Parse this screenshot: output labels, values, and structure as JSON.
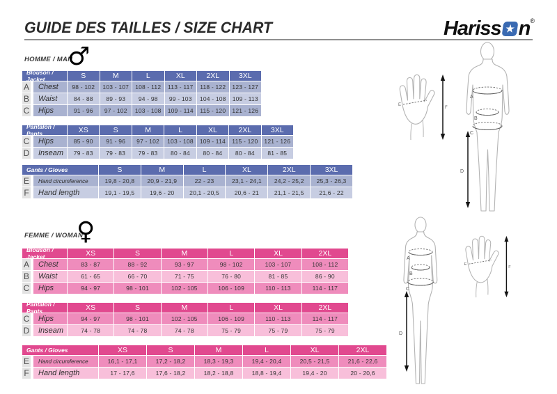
{
  "header": {
    "title": "GUIDE DES TAILLES / SIZE CHART",
    "brand": {
      "part1": "Hariss",
      "part2": "n",
      "star": "★",
      "registered": "®",
      "star_color": "#3a6ab2"
    }
  },
  "sections": {
    "man": {
      "label": "HOMME / MAN",
      "symbol": "♂"
    },
    "woman": {
      "label": "FEMME / WOMAN",
      "symbol": "♀"
    }
  },
  "colors": {
    "man_header": "#5b6cae",
    "man_row_dark": "#a9b2d0",
    "man_row_light": "#c7cde2",
    "woman_header": "#e1498f",
    "woman_row_dark": "#ef8cbc",
    "woman_row_light": "#f8bfda",
    "letter_bg": "#e3e3e3"
  },
  "tables": [
    {
      "key": "man-jacket",
      "section": "man",
      "title": "Blouson / Jacket",
      "sizes": [
        "S",
        "M",
        "L",
        "XL",
        "2XL",
        "3XL"
      ],
      "rows": [
        {
          "letter": "A",
          "label": "Chest",
          "values": [
            "98 - 102",
            "103 - 107",
            "108 - 112",
            "113 - 117",
            "118 - 122",
            "123 - 127"
          ]
        },
        {
          "letter": "B",
          "label": "Waist",
          "values": [
            "84 - 88",
            "89 - 93",
            "94 - 98",
            "99 - 103",
            "104 - 108",
            "109 - 113"
          ]
        },
        {
          "letter": "C",
          "label": "Hips",
          "values": [
            "91 - 96",
            "97 - 102",
            "103 - 108",
            "109 - 114",
            "115 - 120",
            "121 - 126"
          ]
        }
      ]
    },
    {
      "key": "man-pants",
      "section": "man",
      "title": "Pantalon / Pants",
      "sizes": [
        "XS",
        "S",
        "M",
        "L",
        "XL",
        "2XL",
        "3XL"
      ],
      "rows": [
        {
          "letter": "C",
          "label": "Hips",
          "values": [
            "85 - 90",
            "91 - 96",
            "97 - 102",
            "103 - 108",
            "109 - 114",
            "115 - 120",
            "121 - 126"
          ]
        },
        {
          "letter": "D",
          "label": "Inseam",
          "values": [
            "79 - 83",
            "79 - 83",
            "79 - 83",
            "80 - 84",
            "80 - 84",
            "80 - 84",
            "81 - 85"
          ]
        }
      ]
    },
    {
      "key": "man-gloves",
      "section": "man",
      "title": "Gants / Gloves",
      "sizes": [
        "S",
        "M",
        "L",
        "XL",
        "2XL",
        "3XL"
      ],
      "rows": [
        {
          "letter": "E",
          "label": "Hand circumference",
          "values": [
            "19,8 - 20,8",
            "20,9 - 21,9",
            "22 - 23",
            "23,1 - 24,1",
            "24,2 - 25,2",
            "25,3 - 26,3"
          ]
        },
        {
          "letter": "F",
          "label": "Hand length",
          "values": [
            "19,1 - 19,5",
            "19,6 - 20",
            "20,1 - 20,5",
            "20,6 - 21",
            "21,1 - 21,5",
            "21,6 - 22"
          ]
        }
      ]
    },
    {
      "key": "woman-jacket",
      "section": "woman",
      "title": "Blouson / Jacket",
      "sizes": [
        "XS",
        "S",
        "M",
        "L",
        "XL",
        "2XL"
      ],
      "rows": [
        {
          "letter": "A",
          "label": "Chest",
          "values": [
            "83 - 87",
            "88 - 92",
            "93 - 97",
            "98 - 102",
            "103 - 107",
            "108 - 112"
          ]
        },
        {
          "letter": "B",
          "label": "Waist",
          "values": [
            "61 - 65",
            "66 - 70",
            "71 - 75",
            "76 - 80",
            "81 - 85",
            "86 - 90"
          ]
        },
        {
          "letter": "C",
          "label": "Hips",
          "values": [
            "94 - 97",
            "98 - 101",
            "102 - 105",
            "106 - 109",
            "110 - 113",
            "114 - 117"
          ]
        }
      ]
    },
    {
      "key": "woman-pants",
      "section": "woman",
      "title": "Pantalon / Pants",
      "sizes": [
        "XS",
        "S",
        "M",
        "L",
        "XL",
        "2XL"
      ],
      "rows": [
        {
          "letter": "C",
          "label": "Hips",
          "values": [
            "94 - 97",
            "98 - 101",
            "102 - 105",
            "106 - 109",
            "110 - 113",
            "114 - 117"
          ]
        },
        {
          "letter": "D",
          "label": "Inseam",
          "values": [
            "74 - 78",
            "74 - 78",
            "74 - 78",
            "75 - 79",
            "75 - 79",
            "75 - 79"
          ]
        }
      ]
    },
    {
      "key": "woman-gloves",
      "section": "woman",
      "title": "Gants / Gloves",
      "sizes": [
        "XS",
        "S",
        "M",
        "L",
        "XL",
        "2XL"
      ],
      "rows": [
        {
          "letter": "E",
          "label": "Hand circumference",
          "values": [
            "16,1 - 17,1",
            "17,2 - 18,2",
            "18,3 - 19,3",
            "19,4 - 20,4",
            "20,5 - 21,5",
            "21,6 - 22,6"
          ]
        },
        {
          "letter": "F",
          "label": "Hand length",
          "values": [
            "17 - 17,6",
            "17,6 - 18,2",
            "18,2 - 18,8",
            "18,8 - 19,4",
            "19,4 - 20",
            "20 - 20,6"
          ]
        }
      ]
    }
  ],
  "diagram_labels": {
    "chest": "A",
    "waist": "B",
    "hips": "C",
    "inseam": "D",
    "hand_circumference": "E",
    "hand_length": "F"
  }
}
